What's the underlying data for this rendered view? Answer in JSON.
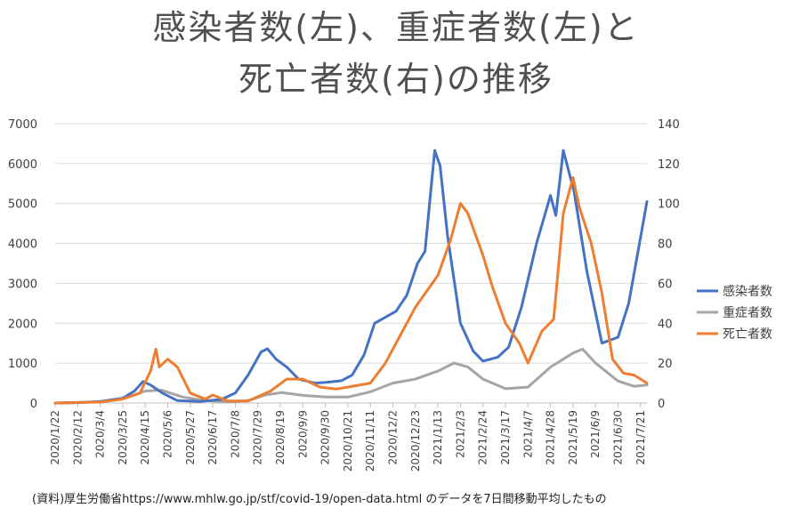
{
  "title_line1": "感染者数(左)、重症者数(左)と",
  "title_line2": "死亡者数(右)の推移",
  "note": "(資料)厚生労働省https://www.mhlw.go.jp/stf/covid-19/open-data.html のデータを7日間移動平均したもの",
  "colors": {
    "cases": "#4472c4",
    "severe": "#a5a5a5",
    "deaths": "#ed7d31"
  },
  "chart_data": {
    "type": "line",
    "title": "感染者数(左)、重症者数(左)と死亡者数(右)の推移",
    "x_start": "2020/1/22",
    "x_end": "2021/7/27",
    "x_tick_labels": [
      "2020/1/22",
      "2020/2/12",
      "2020/3/4",
      "2020/3/25",
      "2020/4/15",
      "2020/5/6",
      "2020/5/27",
      "2020/6/17",
      "2020/7/8",
      "2020/7/29",
      "2020/8/19",
      "2020/9/9",
      "2020/9/30",
      "2020/10/21",
      "2020/11/11",
      "2020/12/2",
      "2020/12/23",
      "2021/1/13",
      "2021/2/3",
      "2021/2/24",
      "2021/3/17",
      "2021/4/7",
      "2021/4/28",
      "2021/5/19",
      "2021/6/9",
      "2021/6/30",
      "2021/7/21"
    ],
    "y_left": {
      "min": 0,
      "max": 7000,
      "ticks": [
        "0",
        "1000",
        "2000",
        "3000",
        "4000",
        "5000",
        "6000",
        "7000"
      ]
    },
    "y_right": {
      "min": 0,
      "max": 140,
      "ticks": [
        "0",
        "20",
        "40",
        "60",
        "80",
        "100",
        "120",
        "140"
      ]
    },
    "legend_position": "right",
    "series": [
      {
        "name": "感染者数",
        "axis": "left",
        "color": "#4472c4",
        "points": [
          [
            "2020/1/22",
            0
          ],
          [
            "2020/2/12",
            10
          ],
          [
            "2020/3/4",
            40
          ],
          [
            "2020/3/25",
            120
          ],
          [
            "2020/4/5",
            300
          ],
          [
            "2020/4/13",
            540
          ],
          [
            "2020/4/20",
            450
          ],
          [
            "2020/5/1",
            250
          ],
          [
            "2020/5/15",
            60
          ],
          [
            "2020/6/5",
            40
          ],
          [
            "2020/6/25",
            90
          ],
          [
            "2020/7/8",
            250
          ],
          [
            "2020/7/20",
            700
          ],
          [
            "2020/8/1",
            1280
          ],
          [
            "2020/8/7",
            1360
          ],
          [
            "2020/8/15",
            1100
          ],
          [
            "2020/8/25",
            900
          ],
          [
            "2020/9/5",
            600
          ],
          [
            "2020/9/20",
            500
          ],
          [
            "2020/10/1",
            520
          ],
          [
            "2020/10/15",
            560
          ],
          [
            "2020/10/25",
            700
          ],
          [
            "2020/11/5",
            1200
          ],
          [
            "2020/11/15",
            2000
          ],
          [
            "2020/11/25",
            2150
          ],
          [
            "2020/12/5",
            2300
          ],
          [
            "2020/12/15",
            2700
          ],
          [
            "2020/12/25",
            3500
          ],
          [
            "2021/1/1",
            3800
          ],
          [
            "2021/1/7",
            5500
          ],
          [
            "2021/1/10",
            6330
          ],
          [
            "2021/1/15",
            5950
          ],
          [
            "2021/1/22",
            4200
          ],
          [
            "2021/2/3",
            2000
          ],
          [
            "2021/2/15",
            1300
          ],
          [
            "2021/2/24",
            1050
          ],
          [
            "2021/3/10",
            1150
          ],
          [
            "2021/3/20",
            1400
          ],
          [
            "2021/4/1",
            2400
          ],
          [
            "2021/4/15",
            4000
          ],
          [
            "2021/4/28",
            5200
          ],
          [
            "2021/5/3",
            4700
          ],
          [
            "2021/5/10",
            6330
          ],
          [
            "2021/5/20",
            5300
          ],
          [
            "2021/6/1",
            3300
          ],
          [
            "2021/6/15",
            1500
          ],
          [
            "2021/6/30",
            1650
          ],
          [
            "2021/7/10",
            2500
          ],
          [
            "2021/7/20",
            4000
          ],
          [
            "2021/7/27",
            5050
          ]
        ]
      },
      {
        "name": "重症者数",
        "axis": "left",
        "color": "#a5a5a5",
        "points": [
          [
            "2020/1/22",
            0
          ],
          [
            "2020/3/4",
            30
          ],
          [
            "2020/3/25",
            100
          ],
          [
            "2020/4/15",
            300
          ],
          [
            "2020/4/30",
            320
          ],
          [
            "2020/5/20",
            150
          ],
          [
            "2020/6/10",
            60
          ],
          [
            "2020/7/1",
            30
          ],
          [
            "2020/7/20",
            60
          ],
          [
            "2020/8/5",
            200
          ],
          [
            "2020/8/20",
            260
          ],
          [
            "2020/9/10",
            190
          ],
          [
            "2020/10/1",
            150
          ],
          [
            "2020/10/21",
            150
          ],
          [
            "2020/11/11",
            280
          ],
          [
            "2020/12/2",
            500
          ],
          [
            "2020/12/23",
            600
          ],
          [
            "2021/1/13",
            800
          ],
          [
            "2021/1/28",
            1000
          ],
          [
            "2021/2/10",
            900
          ],
          [
            "2021/2/24",
            600
          ],
          [
            "2021/3/17",
            360
          ],
          [
            "2021/4/7",
            400
          ],
          [
            "2021/4/28",
            900
          ],
          [
            "2021/5/19",
            1250
          ],
          [
            "2021/5/28",
            1350
          ],
          [
            "2021/6/9",
            1000
          ],
          [
            "2021/6/30",
            550
          ],
          [
            "2021/7/15",
            420
          ],
          [
            "2021/7/27",
            450
          ]
        ]
      },
      {
        "name": "死亡者数",
        "axis": "right",
        "color": "#ed7d31",
        "points": [
          [
            "2020/1/22",
            0
          ],
          [
            "2020/3/4",
            0.5
          ],
          [
            "2020/3/25",
            2
          ],
          [
            "2020/4/10",
            5
          ],
          [
            "2020/4/20",
            16
          ],
          [
            "2020/4/25",
            27
          ],
          [
            "2020/4/28",
            18
          ],
          [
            "2020/5/6",
            22
          ],
          [
            "2020/5/15",
            18
          ],
          [
            "2020/5/27",
            5
          ],
          [
            "2020/6/10",
            2
          ],
          [
            "2020/6/17",
            4
          ],
          [
            "2020/7/1",
            1
          ],
          [
            "2020/7/20",
            1
          ],
          [
            "2020/8/10",
            6
          ],
          [
            "2020/8/25",
            12
          ],
          [
            "2020/9/9",
            12
          ],
          [
            "2020/9/25",
            8
          ],
          [
            "2020/10/10",
            7
          ],
          [
            "2020/10/21",
            8
          ],
          [
            "2020/11/11",
            10
          ],
          [
            "2020/11/25",
            20
          ],
          [
            "2020/12/10",
            35
          ],
          [
            "2020/12/23",
            48
          ],
          [
            "2021/1/13",
            64
          ],
          [
            "2021/1/25",
            82
          ],
          [
            "2021/2/3",
            100
          ],
          [
            "2021/2/10",
            95
          ],
          [
            "2021/2/24",
            74
          ],
          [
            "2021/3/5",
            58
          ],
          [
            "2021/3/17",
            40
          ],
          [
            "2021/3/30",
            30
          ],
          [
            "2021/4/7",
            20
          ],
          [
            "2021/4/20",
            36
          ],
          [
            "2021/5/1",
            42
          ],
          [
            "2021/5/10",
            95
          ],
          [
            "2021/5/19",
            113
          ],
          [
            "2021/5/25",
            98
          ],
          [
            "2021/6/5",
            80
          ],
          [
            "2021/6/15",
            55
          ],
          [
            "2021/6/25",
            22
          ],
          [
            "2021/7/5",
            15
          ],
          [
            "2021/7/15",
            14
          ],
          [
            "2021/7/27",
            10
          ]
        ]
      }
    ]
  }
}
